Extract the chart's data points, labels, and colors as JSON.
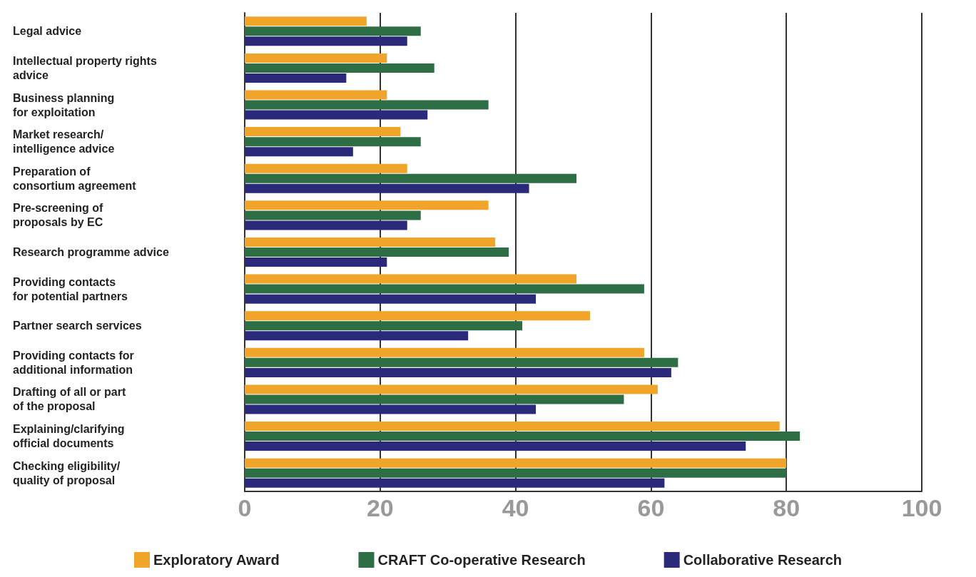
{
  "chart_data": {
    "type": "bar",
    "orientation": "horizontal",
    "categories": [
      "Legal advice",
      "Intellectual property rights\nadvice",
      "Business planning\nfor exploitation",
      "Market research/\nintelligence advice",
      "Preparation of\nconsortium agreement",
      "Pre-screening of\nproposals by EC",
      "Research programme advice",
      "Providing contacts\nfor potential partners",
      "Partner search services",
      "Providing contacts for\nadditional information",
      "Drafting of all or part\nof the proposal",
      "Explaining/clarifying\nofficial documents",
      "Checking eligibility/\nquality of proposal"
    ],
    "series": [
      {
        "name": "Exploratory Award",
        "color": "#f0a52a",
        "values": [
          18,
          21,
          21,
          23,
          24,
          36,
          37,
          49,
          51,
          59,
          61,
          79,
          80
        ]
      },
      {
        "name": "CRAFT Co-operative Research",
        "color": "#2e6e45",
        "values": [
          26,
          28,
          36,
          26,
          49,
          26,
          39,
          59,
          41,
          64,
          56,
          82,
          80
        ]
      },
      {
        "name": "Collaborative Research",
        "color": "#2b2a7a",
        "values": [
          24,
          15,
          27,
          16,
          42,
          24,
          21,
          43,
          33,
          63,
          43,
          74,
          62
        ]
      }
    ],
    "xlim": [
      0,
      100
    ],
    "xticks": [
      0,
      20,
      40,
      60,
      80,
      100
    ],
    "grid": "x",
    "legend": "bottom"
  }
}
